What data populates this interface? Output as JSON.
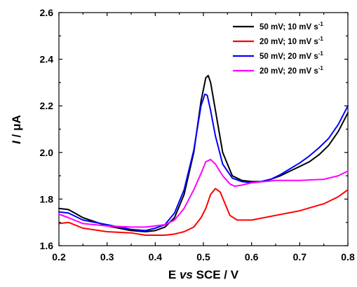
{
  "chart_data": {
    "type": "line",
    "title": "",
    "xlabel": {
      "parts": [
        {
          "text": "E ",
          "italic": false
        },
        {
          "text": "vs",
          "italic": true
        },
        {
          "text": " SCE / V",
          "italic": false
        }
      ]
    },
    "ylabel": {
      "parts": [
        {
          "text": "I",
          "italic": true
        },
        {
          "text": " / ",
          "italic": false
        },
        {
          "text": "μ",
          "italic": false
        },
        {
          "text": "A",
          "italic": false
        }
      ]
    },
    "xlim": [
      0.2,
      0.8
    ],
    "ylim": [
      1.6,
      2.6
    ],
    "x_ticks": [
      "0.2",
      "0.3",
      "0.4",
      "0.5",
      "0.6",
      "0.7",
      "0.8"
    ],
    "y_ticks": [
      "1.6",
      "1.8",
      "2.0",
      "2.2",
      "2.4",
      "2.6"
    ],
    "x_tick_values": [
      0.2,
      0.3,
      0.4,
      0.5,
      0.6,
      0.7,
      0.8
    ],
    "y_tick_values": [
      1.6,
      1.8,
      2.0,
      2.2,
      2.4,
      2.6
    ],
    "grid": false,
    "legend_position": "top-right",
    "series": [
      {
        "name": "50 mV; 10 mV s",
        "name_sup": "-1",
        "color": "#000000",
        "points": [
          [
            0.2,
            1.76
          ],
          [
            0.22,
            1.755
          ],
          [
            0.25,
            1.72
          ],
          [
            0.3,
            1.685
          ],
          [
            0.35,
            1.665
          ],
          [
            0.38,
            1.66
          ],
          [
            0.4,
            1.665
          ],
          [
            0.42,
            1.68
          ],
          [
            0.44,
            1.72
          ],
          [
            0.46,
            1.82
          ],
          [
            0.48,
            2.0
          ],
          [
            0.495,
            2.22
          ],
          [
            0.505,
            2.32
          ],
          [
            0.51,
            2.33
          ],
          [
            0.515,
            2.3
          ],
          [
            0.525,
            2.18
          ],
          [
            0.54,
            2.0
          ],
          [
            0.56,
            1.9
          ],
          [
            0.58,
            1.88
          ],
          [
            0.6,
            1.875
          ],
          [
            0.62,
            1.875
          ],
          [
            0.64,
            1.885
          ],
          [
            0.66,
            1.9
          ],
          [
            0.68,
            1.92
          ],
          [
            0.7,
            1.94
          ],
          [
            0.72,
            1.96
          ],
          [
            0.74,
            1.99
          ],
          [
            0.76,
            2.03
          ],
          [
            0.78,
            2.09
          ],
          [
            0.8,
            2.17
          ]
        ]
      },
      {
        "name": "20 mV; 10 mV s",
        "name_sup": "-1",
        "color": "#ff0000",
        "points": [
          [
            0.2,
            1.695
          ],
          [
            0.22,
            1.7
          ],
          [
            0.25,
            1.675
          ],
          [
            0.3,
            1.66
          ],
          [
            0.35,
            1.655
          ],
          [
            0.38,
            1.645
          ],
          [
            0.4,
            1.645
          ],
          [
            0.42,
            1.645
          ],
          [
            0.44,
            1.65
          ],
          [
            0.46,
            1.66
          ],
          [
            0.48,
            1.68
          ],
          [
            0.495,
            1.72
          ],
          [
            0.505,
            1.76
          ],
          [
            0.515,
            1.82
          ],
          [
            0.525,
            1.845
          ],
          [
            0.535,
            1.83
          ],
          [
            0.545,
            1.78
          ],
          [
            0.555,
            1.73
          ],
          [
            0.57,
            1.71
          ],
          [
            0.6,
            1.71
          ],
          [
            0.65,
            1.73
          ],
          [
            0.7,
            1.75
          ],
          [
            0.75,
            1.78
          ],
          [
            0.78,
            1.81
          ],
          [
            0.8,
            1.84
          ]
        ]
      },
      {
        "name": "50 mV; 20 mV s",
        "name_sup": "-1",
        "color": "#0000ff",
        "points": [
          [
            0.2,
            1.745
          ],
          [
            0.22,
            1.74
          ],
          [
            0.25,
            1.71
          ],
          [
            0.3,
            1.69
          ],
          [
            0.35,
            1.67
          ],
          [
            0.38,
            1.665
          ],
          [
            0.4,
            1.675
          ],
          [
            0.42,
            1.69
          ],
          [
            0.44,
            1.74
          ],
          [
            0.46,
            1.84
          ],
          [
            0.48,
            2.01
          ],
          [
            0.495,
            2.2
          ],
          [
            0.503,
            2.25
          ],
          [
            0.508,
            2.245
          ],
          [
            0.515,
            2.18
          ],
          [
            0.525,
            2.07
          ],
          [
            0.54,
            1.95
          ],
          [
            0.56,
            1.89
          ],
          [
            0.58,
            1.875
          ],
          [
            0.6,
            1.87
          ],
          [
            0.62,
            1.875
          ],
          [
            0.64,
            1.885
          ],
          [
            0.66,
            1.905
          ],
          [
            0.68,
            1.93
          ],
          [
            0.7,
            1.955
          ],
          [
            0.72,
            1.985
          ],
          [
            0.74,
            2.02
          ],
          [
            0.76,
            2.06
          ],
          [
            0.78,
            2.12
          ],
          [
            0.8,
            2.2
          ]
        ]
      },
      {
        "name": "20 mV; 20 mV s",
        "name_sup": "-1",
        "color": "#ff00ff",
        "points": [
          [
            0.2,
            1.735
          ],
          [
            0.22,
            1.72
          ],
          [
            0.25,
            1.695
          ],
          [
            0.3,
            1.685
          ],
          [
            0.35,
            1.68
          ],
          [
            0.38,
            1.68
          ],
          [
            0.4,
            1.685
          ],
          [
            0.42,
            1.69
          ],
          [
            0.44,
            1.71
          ],
          [
            0.46,
            1.76
          ],
          [
            0.48,
            1.84
          ],
          [
            0.495,
            1.91
          ],
          [
            0.505,
            1.96
          ],
          [
            0.515,
            1.97
          ],
          [
            0.525,
            1.95
          ],
          [
            0.54,
            1.9
          ],
          [
            0.555,
            1.865
          ],
          [
            0.565,
            1.855
          ],
          [
            0.58,
            1.86
          ],
          [
            0.6,
            1.87
          ],
          [
            0.65,
            1.88
          ],
          [
            0.7,
            1.88
          ],
          [
            0.75,
            1.885
          ],
          [
            0.78,
            1.9
          ],
          [
            0.8,
            1.92
          ]
        ]
      }
    ]
  }
}
